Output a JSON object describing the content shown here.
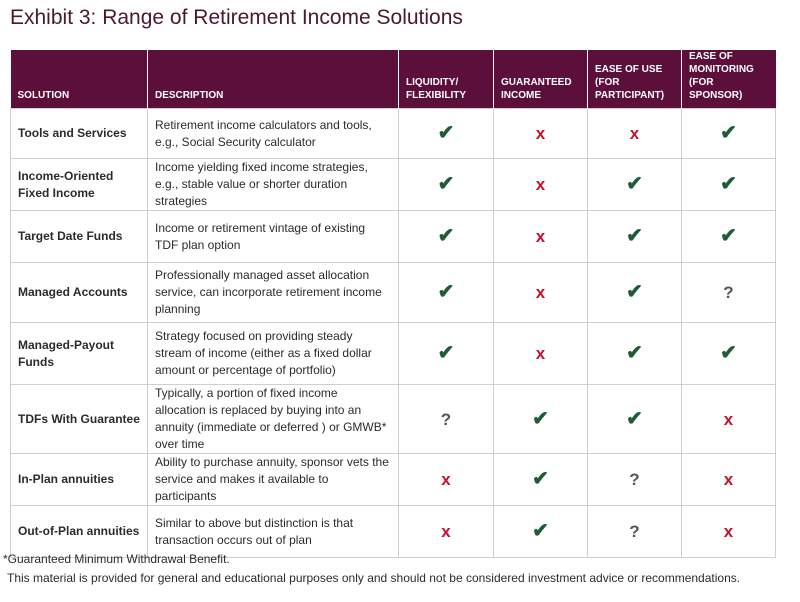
{
  "title": "Exhibit 3: Range of Retirement Income Solutions",
  "table": {
    "header": [
      "SOLUTION",
      "DESCRIPTION",
      "LIQUIDITY/ FLEXIBILITY",
      "GUARANTEED INCOME",
      "EASE OF USE (FOR PARTICIPANT)",
      "EASE OF MONITORING (FOR SPONSOR)"
    ],
    "rows": [
      [
        "Tools and Services",
        "Retirement income calculators and tools, e.g., Social Security calculator",
        "✔",
        "x",
        "x",
        "✔"
      ],
      [
        "Income-Oriented Fixed Income",
        "Income yielding fixed income strategies, e.g., stable value or shorter duration strategies",
        "✔",
        "x",
        "✔",
        "✔"
      ],
      [
        "Target Date Funds",
        "Income or retirement vintage of existing TDF plan option",
        "✔",
        "x",
        "✔",
        "✔"
      ],
      [
        "Managed Accounts",
        "Professionally managed asset allocation service, can incorporate retirement income planning",
        "✔",
        "x",
        "✔",
        "?"
      ],
      [
        "Managed-Payout Funds",
        "Strategy focused on providing steady stream of income (either as a fixed dollar amount or percentage of portfolio)",
        "✔",
        "x",
        "✔",
        "✔"
      ],
      [
        "TDFs With Guarantee",
        "Typically, a portion of fixed income allocation is replaced by buying into an annuity (immediate or deferred ) or GMWB* over time",
        "?",
        "✔",
        "✔",
        "x"
      ],
      [
        "In-Plan annuities",
        "Ability to purchase annuity, sponsor vets the service and makes it available to participants",
        "x",
        "✔",
        "?",
        "x"
      ],
      [
        "Out-of-Plan annuities",
        "Similar to above but distinction is that transaction occurs out of plan",
        "x",
        "✔",
        "?",
        "x"
      ]
    ]
  },
  "footnote": "*Guaranteed Minimum Withdrawal Benefit.",
  "disclaimer": "This material is provided for general and educational purposes only and should not be considered investment advice or recommendations."
}
